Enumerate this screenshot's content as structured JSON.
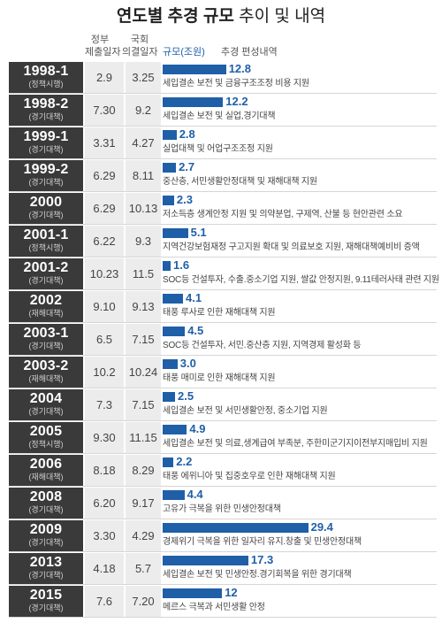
{
  "title": {
    "bold": "연도별 추경 규모",
    "rest": "추이 및 내역"
  },
  "headers": {
    "gov": [
      "정부",
      "제출일자"
    ],
    "assembly": [
      "국회",
      "의결일자"
    ],
    "scale": "규모(조원)",
    "content": "추경 편성내역"
  },
  "colors": {
    "bar": "#1f5fa8",
    "year_cell": "#3a3a3a",
    "date_cell": "#ececec"
  },
  "chart_data": {
    "type": "bar",
    "orientation": "horizontal",
    "title": "연도별 추경 규모 추이 및 내역",
    "value_label": "규모(조원)",
    "xlim": [
      0,
      30
    ],
    "rows": [
      {
        "year": "1998-1",
        "note": "(정책시행)",
        "gov": "2.9",
        "assembly": "3.25",
        "value": 12.8,
        "value_label": "12.8",
        "desc": "세입결손 보전 및 금융구조조정 비용 지원"
      },
      {
        "year": "1998-2",
        "note": "(경기대책)",
        "gov": "7.30",
        "assembly": "9.2",
        "value": 12.2,
        "value_label": "12.2",
        "desc": "세입결손 보전 및 실업,경기대책"
      },
      {
        "year": "1999-1",
        "note": "(경기대책)",
        "gov": "3.31",
        "assembly": "4.27",
        "value": 2.8,
        "value_label": "2.8",
        "desc": "실업대책 및 어업구조조정 지원"
      },
      {
        "year": "1999-2",
        "note": "(경기대책)",
        "gov": "6.29",
        "assembly": "8.11",
        "value": 2.7,
        "value_label": "2.7",
        "desc": "중산층, 서민생활안정대책 및 재해대책 지원"
      },
      {
        "year": "2000",
        "note": "(경기대책)",
        "gov": "6.29",
        "assembly": "10.13",
        "value": 2.3,
        "value_label": "2.3",
        "desc": "저소득층 생계안정 지원 및 의약분업, 구제역, 산불 등 현안관련 소요"
      },
      {
        "year": "2001-1",
        "note": "(정책시행)",
        "gov": "6.22",
        "assembly": "9.3",
        "value": 5.1,
        "value_label": "5.1",
        "desc": "지역건강보험재정 구고지원 확대 및 의료보호 지원, 재해대책예비비 증액"
      },
      {
        "year": "2001-2",
        "note": "(경기대책)",
        "gov": "10.23",
        "assembly": "11.5",
        "value": 1.6,
        "value_label": "1.6",
        "desc": "SOC등 건설투자, 수출.중소기업 지원, 쌀값 안정지원, 9.11테러사태 관련 지원"
      },
      {
        "year": "2002",
        "note": "(재해대책)",
        "gov": "9.10",
        "assembly": "9.13",
        "value": 4.1,
        "value_label": "4.1",
        "desc": "태풍 루사로 인한 재해대책 지원"
      },
      {
        "year": "2003-1",
        "note": "(경기대책)",
        "gov": "6.5",
        "assembly": "7.15",
        "value": 4.5,
        "value_label": "4.5",
        "desc": "SOC등 건설투자, 서민.중산층 지원, 지역경제 활성화 등"
      },
      {
        "year": "2003-2",
        "note": "(재해대책)",
        "gov": "10.2",
        "assembly": "10.24",
        "value": 3.0,
        "value_label": "3.0",
        "desc": "태풍 매미로 인한 재해대책 지원"
      },
      {
        "year": "2004",
        "note": "(경기대책)",
        "gov": "7.3",
        "assembly": "7.15",
        "value": 2.5,
        "value_label": "2.5",
        "desc": "세입결손 보전 및 서민생활안정, 중소기업 지원"
      },
      {
        "year": "2005",
        "note": "(정책시행)",
        "gov": "9.30",
        "assembly": "11.15",
        "value": 4.9,
        "value_label": "4.9",
        "desc": "세입결손 보전 및 의료,생계급여 부족분, 주한미군기지이전부지매입비 지원"
      },
      {
        "year": "2006",
        "note": "(재해대책)",
        "gov": "8.18",
        "assembly": "8.29",
        "value": 2.2,
        "value_label": "2.2",
        "desc": "태풍 에위니아 및 집중호우로 인한 재해대책 지원"
      },
      {
        "year": "2008",
        "note": "(경기대책)",
        "gov": "6.20",
        "assembly": "9.17",
        "value": 4.4,
        "value_label": "4.4",
        "desc": "고유가 극복을 위한 민생안정대책"
      },
      {
        "year": "2009",
        "note": "(경기대책)",
        "gov": "3.30",
        "assembly": "4.29",
        "value": 29.4,
        "value_label": "29.4",
        "desc": "경제위기 극복을 위한 일자리 유지.창출 및 민생안정대책"
      },
      {
        "year": "2013",
        "note": "(경기대책)",
        "gov": "4.18",
        "assembly": "5.7",
        "value": 17.3,
        "value_label": "17.3",
        "desc": "세입결손 보전 및 민생안정.경기회복을 위한 경기대책"
      },
      {
        "year": "2015",
        "note": "(경기대책)",
        "gov": "7.6",
        "assembly": "7.20",
        "value": 12.0,
        "value_label": "12",
        "desc": "메르스 극복과 서민생활 안정"
      }
    ]
  }
}
